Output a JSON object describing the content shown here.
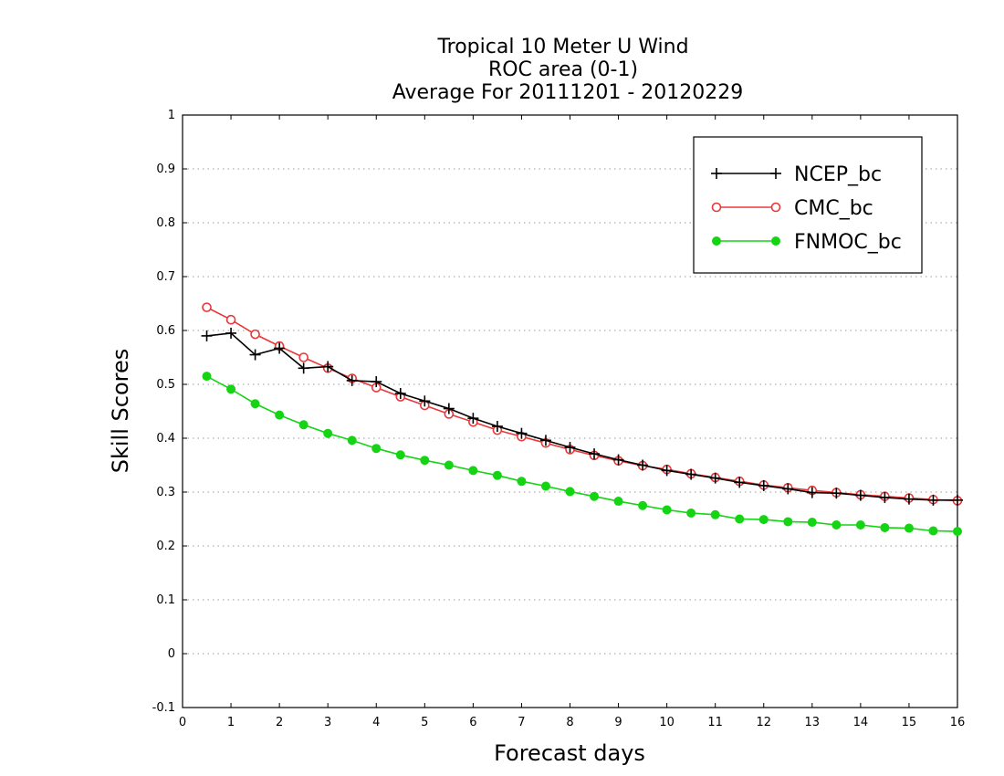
{
  "chart_data": {
    "type": "line",
    "title_lines": [
      "Tropical 10 Meter U Wind",
      "ROC area (0-1)",
      "Average For 20111201 - 20120229"
    ],
    "xlabel": "Forecast days",
    "ylabel": "Skill Scores",
    "xlim": [
      0,
      16
    ],
    "ylim": [
      -0.1,
      1
    ],
    "xticks": [
      0,
      1,
      2,
      3,
      4,
      5,
      6,
      7,
      8,
      9,
      10,
      11,
      12,
      13,
      14,
      15,
      16
    ],
    "yticks": [
      -0.1,
      0,
      0.1,
      0.2,
      0.3,
      0.4,
      0.5,
      0.6,
      0.7,
      0.8,
      0.9,
      1
    ],
    "ytick_labels": [
      "-0.1",
      "0",
      "0.1",
      "0.2",
      "0.3",
      "0.4",
      "0.5",
      "0.6",
      "0.7",
      "0.8",
      "0.9",
      "1"
    ],
    "grid": "horizontal dotted",
    "legend_position": "top-right",
    "x": [
      0.5,
      1,
      1.5,
      2,
      2.5,
      3,
      3.5,
      4,
      4.5,
      5,
      5.5,
      6,
      6.5,
      7,
      7.5,
      8,
      8.5,
      9,
      9.5,
      10,
      10.5,
      11,
      11.5,
      12,
      12.5,
      13,
      13.5,
      14,
      14.5,
      15,
      15.5,
      16
    ],
    "series": [
      {
        "name": "NCEP_bc",
        "color": "#000000",
        "marker": "plus",
        "values": [
          0.59,
          0.595,
          0.555,
          0.567,
          0.53,
          0.533,
          0.507,
          0.505,
          0.483,
          0.469,
          0.455,
          0.437,
          0.422,
          0.409,
          0.396,
          0.383,
          0.371,
          0.36,
          0.35,
          0.34,
          0.333,
          0.326,
          0.318,
          0.312,
          0.306,
          0.299,
          0.298,
          0.294,
          0.29,
          0.287,
          0.285,
          0.285
        ]
      },
      {
        "name": "CMC_bc",
        "color": "#e8383a",
        "marker": "open-circle",
        "values": [
          0.643,
          0.62,
          0.593,
          0.571,
          0.55,
          0.53,
          0.511,
          0.494,
          0.477,
          0.461,
          0.445,
          0.43,
          0.415,
          0.403,
          0.391,
          0.379,
          0.368,
          0.358,
          0.349,
          0.342,
          0.334,
          0.327,
          0.32,
          0.313,
          0.308,
          0.303,
          0.299,
          0.295,
          0.292,
          0.289,
          0.286,
          0.284
        ]
      },
      {
        "name": "FNMOC_bc",
        "color": "#14d414",
        "marker": "filled-circle",
        "values": [
          0.515,
          0.491,
          0.464,
          0.443,
          0.425,
          0.409,
          0.396,
          0.381,
          0.369,
          0.359,
          0.35,
          0.34,
          0.331,
          0.32,
          0.311,
          0.301,
          0.292,
          0.283,
          0.275,
          0.267,
          0.261,
          0.258,
          0.25,
          0.249,
          0.245,
          0.244,
          0.239,
          0.239,
          0.234,
          0.233,
          0.228,
          0.227
        ]
      }
    ]
  }
}
